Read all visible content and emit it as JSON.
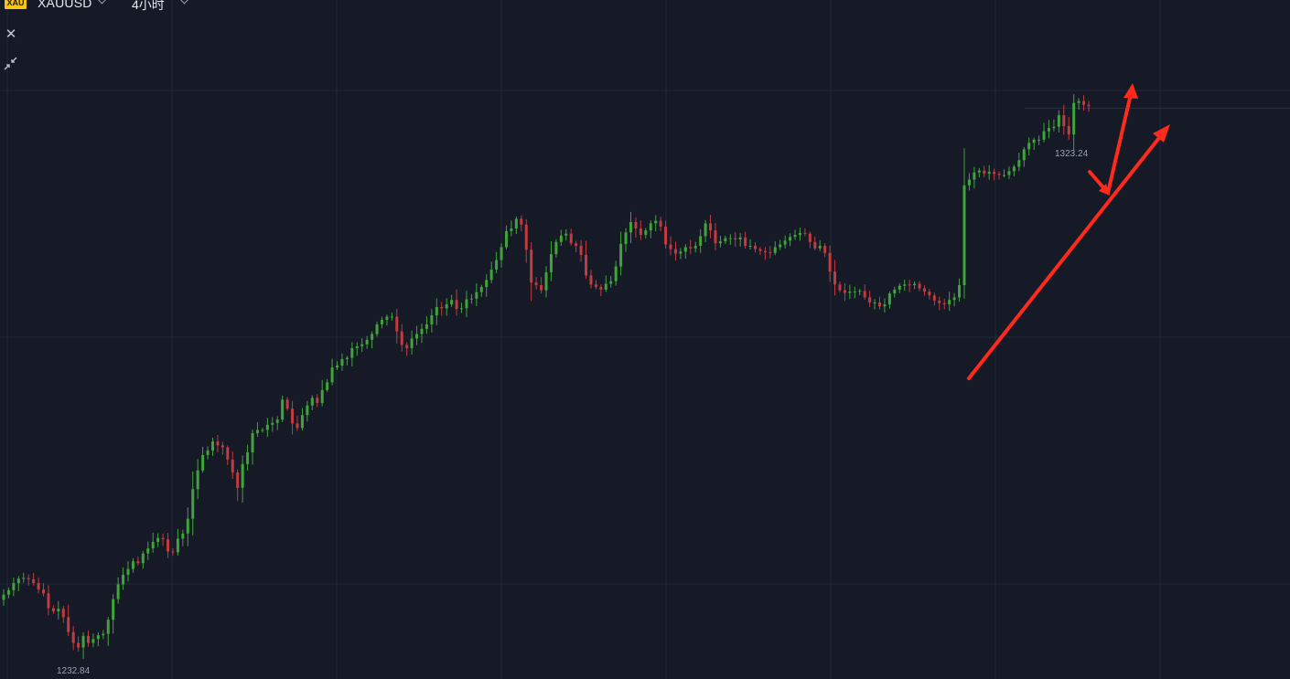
{
  "header": {
    "logo_text": "XAU",
    "symbol": "XAUUSD",
    "interval": "4小时"
  },
  "icons": {
    "close": "close-icon",
    "collapse": "collapse-arrows-icon",
    "symbol_dropdown": "chevron-down-icon",
    "interval_dropdown": "chevron-down-icon"
  },
  "colors": {
    "background": "#161a27",
    "grid": "#232838",
    "up": "#3fa43a",
    "down": "#c23b3f",
    "arrow": "#ff2a1c",
    "label": "#9aa0ad"
  },
  "chart_data": {
    "type": "candlestick",
    "title": "",
    "xlabel": "",
    "ylabel": "",
    "ylim": [
      1231.3,
      1336.8
    ],
    "grid": true,
    "high_label": "1323.24",
    "low_label": "1232.84",
    "high_value": 1323.24,
    "low_value": 1232.84,
    "reference_line": 1320.0,
    "closes": [
      1244.4,
      1245.1,
      1246.2,
      1246.9,
      1247.0,
      1246.8,
      1246.2,
      1245.2,
      1244.6,
      1242.3,
      1241.8,
      1242.2,
      1240.9,
      1238.6,
      1236.9,
      1236.2,
      1238.0,
      1236.9,
      1237.5,
      1238.1,
      1238.3,
      1240.5,
      1243.7,
      1246.0,
      1247.5,
      1248.4,
      1249.6,
      1249.3,
      1250.8,
      1251.6,
      1252.6,
      1253.2,
      1253.0,
      1251.1,
      1251.0,
      1253.1,
      1253.9,
      1256.2,
      1260.8,
      1263.7,
      1266.1,
      1266.8,
      1268.2,
      1267.6,
      1267.3,
      1265.4,
      1263.4,
      1261.0,
      1264.7,
      1266.5,
      1269.5,
      1270.0,
      1270.0,
      1270.8,
      1271.1,
      1271.6,
      1274.7,
      1273.3,
      1271.0,
      1270.3,
      1272.3,
      1273.8,
      1275.0,
      1274.2,
      1276.2,
      1277.4,
      1279.7,
      1280.0,
      1281.0,
      1281.2,
      1282.7,
      1283.0,
      1283.3,
      1284.0,
      1284.9,
      1286.4,
      1287.1,
      1287.6,
      1287.6,
      1285.3,
      1283.2,
      1282.7,
      1284.2,
      1284.9,
      1285.7,
      1286.4,
      1287.8,
      1289.1,
      1288.9,
      1289.5,
      1290.2,
      1288.8,
      1288.9,
      1290.3,
      1290.4,
      1291.4,
      1292.2,
      1293.3,
      1294.9,
      1296.4,
      1298.4,
      1300.9,
      1301.3,
      1302.8,
      1301.9,
      1298.0,
      1292.9,
      1292.5,
      1291.7,
      1294.5,
      1297.3,
      1299.2,
      1300.2,
      1300.5,
      1299.0,
      1298.6,
      1297.2,
      1294.0,
      1292.6,
      1292.2,
      1291.8,
      1292.7,
      1293.1,
      1295.4,
      1298.9,
      1300.7,
      1302.3,
      1301.3,
      1300.3,
      1301.0,
      1302.1,
      1302.5,
      1301.6,
      1298.8,
      1298.1,
      1297.4,
      1297.7,
      1298.4,
      1298.2,
      1298.6,
      1300.1,
      1302.1,
      1301.0,
      1299.0,
      1299.3,
      1299.8,
      1299.8,
      1299.6,
      1299.9,
      1298.6,
      1298.6,
      1298.1,
      1297.8,
      1297.6,
      1297.5,
      1298.4,
      1298.8,
      1299.4,
      1300.0,
      1300.3,
      1300.6,
      1300.5,
      1299.2,
      1298.2,
      1298.6,
      1297.5,
      1294.6,
      1292.6,
      1291.7,
      1291.3,
      1291.5,
      1291.5,
      1291.6,
      1290.6,
      1289.8,
      1289.8,
      1289.2,
      1289.5,
      1291.2,
      1291.8,
      1292.4,
      1292.6,
      1292.5,
      1292.7,
      1292.0,
      1291.5,
      1290.9,
      1290.1,
      1289.7,
      1289.5,
      1290.2,
      1290.6,
      1292.5,
      1308.0,
      1308.9,
      1310.0,
      1310.3,
      1309.8,
      1310.1,
      1309.8,
      1309.6,
      1309.6,
      1310.2,
      1310.9,
      1311.9,
      1313.6,
      1314.6,
      1315.1,
      1315.1,
      1316.4,
      1316.9,
      1317.1,
      1318.9,
      1317.2,
      1315.9,
      1320.8,
      1321.1,
      1320.5,
      1320.3
    ]
  }
}
